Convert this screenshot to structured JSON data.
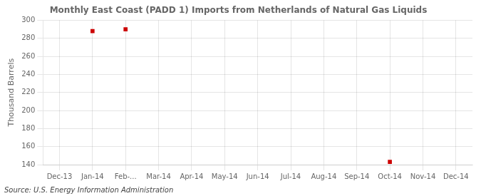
{
  "chart_data": {
    "type": "scatter",
    "title": "Monthly East Coast (PADD 1) Imports from Netherlands of Natural Gas Liquids",
    "y_label": "Thousand Barrels",
    "source": "Source: U.S. Energy Information Administration",
    "categories": [
      "Dec-13",
      "Jan-14",
      "Feb-...",
      "Mar-14",
      "Apr-14",
      "May-14",
      "Jun-14",
      "Jul-14",
      "Aug-14",
      "Sep-14",
      "Oct-14",
      "Nov-14",
      "Dec-14"
    ],
    "values": [
      null,
      288,
      290,
      null,
      null,
      null,
      null,
      null,
      null,
      null,
      143,
      null,
      null
    ],
    "color": "#cc0000",
    "marker": "square",
    "ylim": [
      140,
      300
    ],
    "yticks": [
      140,
      160,
      180,
      200,
      220,
      240,
      260,
      280,
      300
    ],
    "grid": true
  }
}
